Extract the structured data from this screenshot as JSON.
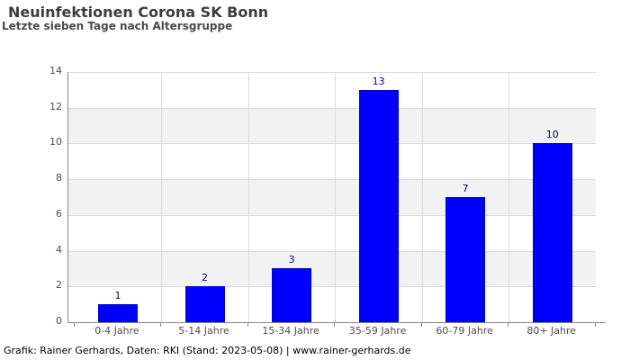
{
  "header": {
    "title": "Neuinfektionen Corona SK Bonn",
    "subtitle": "Letzte sieben Tage nach Altersgruppe"
  },
  "footer": {
    "credit": "Grafik: Rainer Gerhards, Daten: RKI (Stand: 2023-05-08) | www.rainer-gerhards.de"
  },
  "chart_data": {
    "type": "bar",
    "title": "Neuinfektionen Corona SK Bonn",
    "subtitle": "Letzte sieben Tage nach Altersgruppe",
    "categories": [
      "0-4 Jahre",
      "5-14 Jahre",
      "15-34 Jahre",
      "35-59 Jahre",
      "60-79 Jahre",
      "80+ Jahre"
    ],
    "values": [
      1,
      2,
      3,
      13,
      7,
      10
    ],
    "xlabel": "",
    "ylabel": "",
    "ylim": [
      0,
      14
    ],
    "yticks": [
      0,
      2,
      4,
      6,
      8,
      10,
      12,
      14
    ],
    "grid": true,
    "legend": false,
    "value_labels": true,
    "colors": {
      "bar_fill": "#0000ff",
      "bar_border": "#0000cd",
      "value_label": "#00008b",
      "band": "#f2f2f2",
      "gridline": "#dbdbdb",
      "axis": "#878787"
    }
  }
}
